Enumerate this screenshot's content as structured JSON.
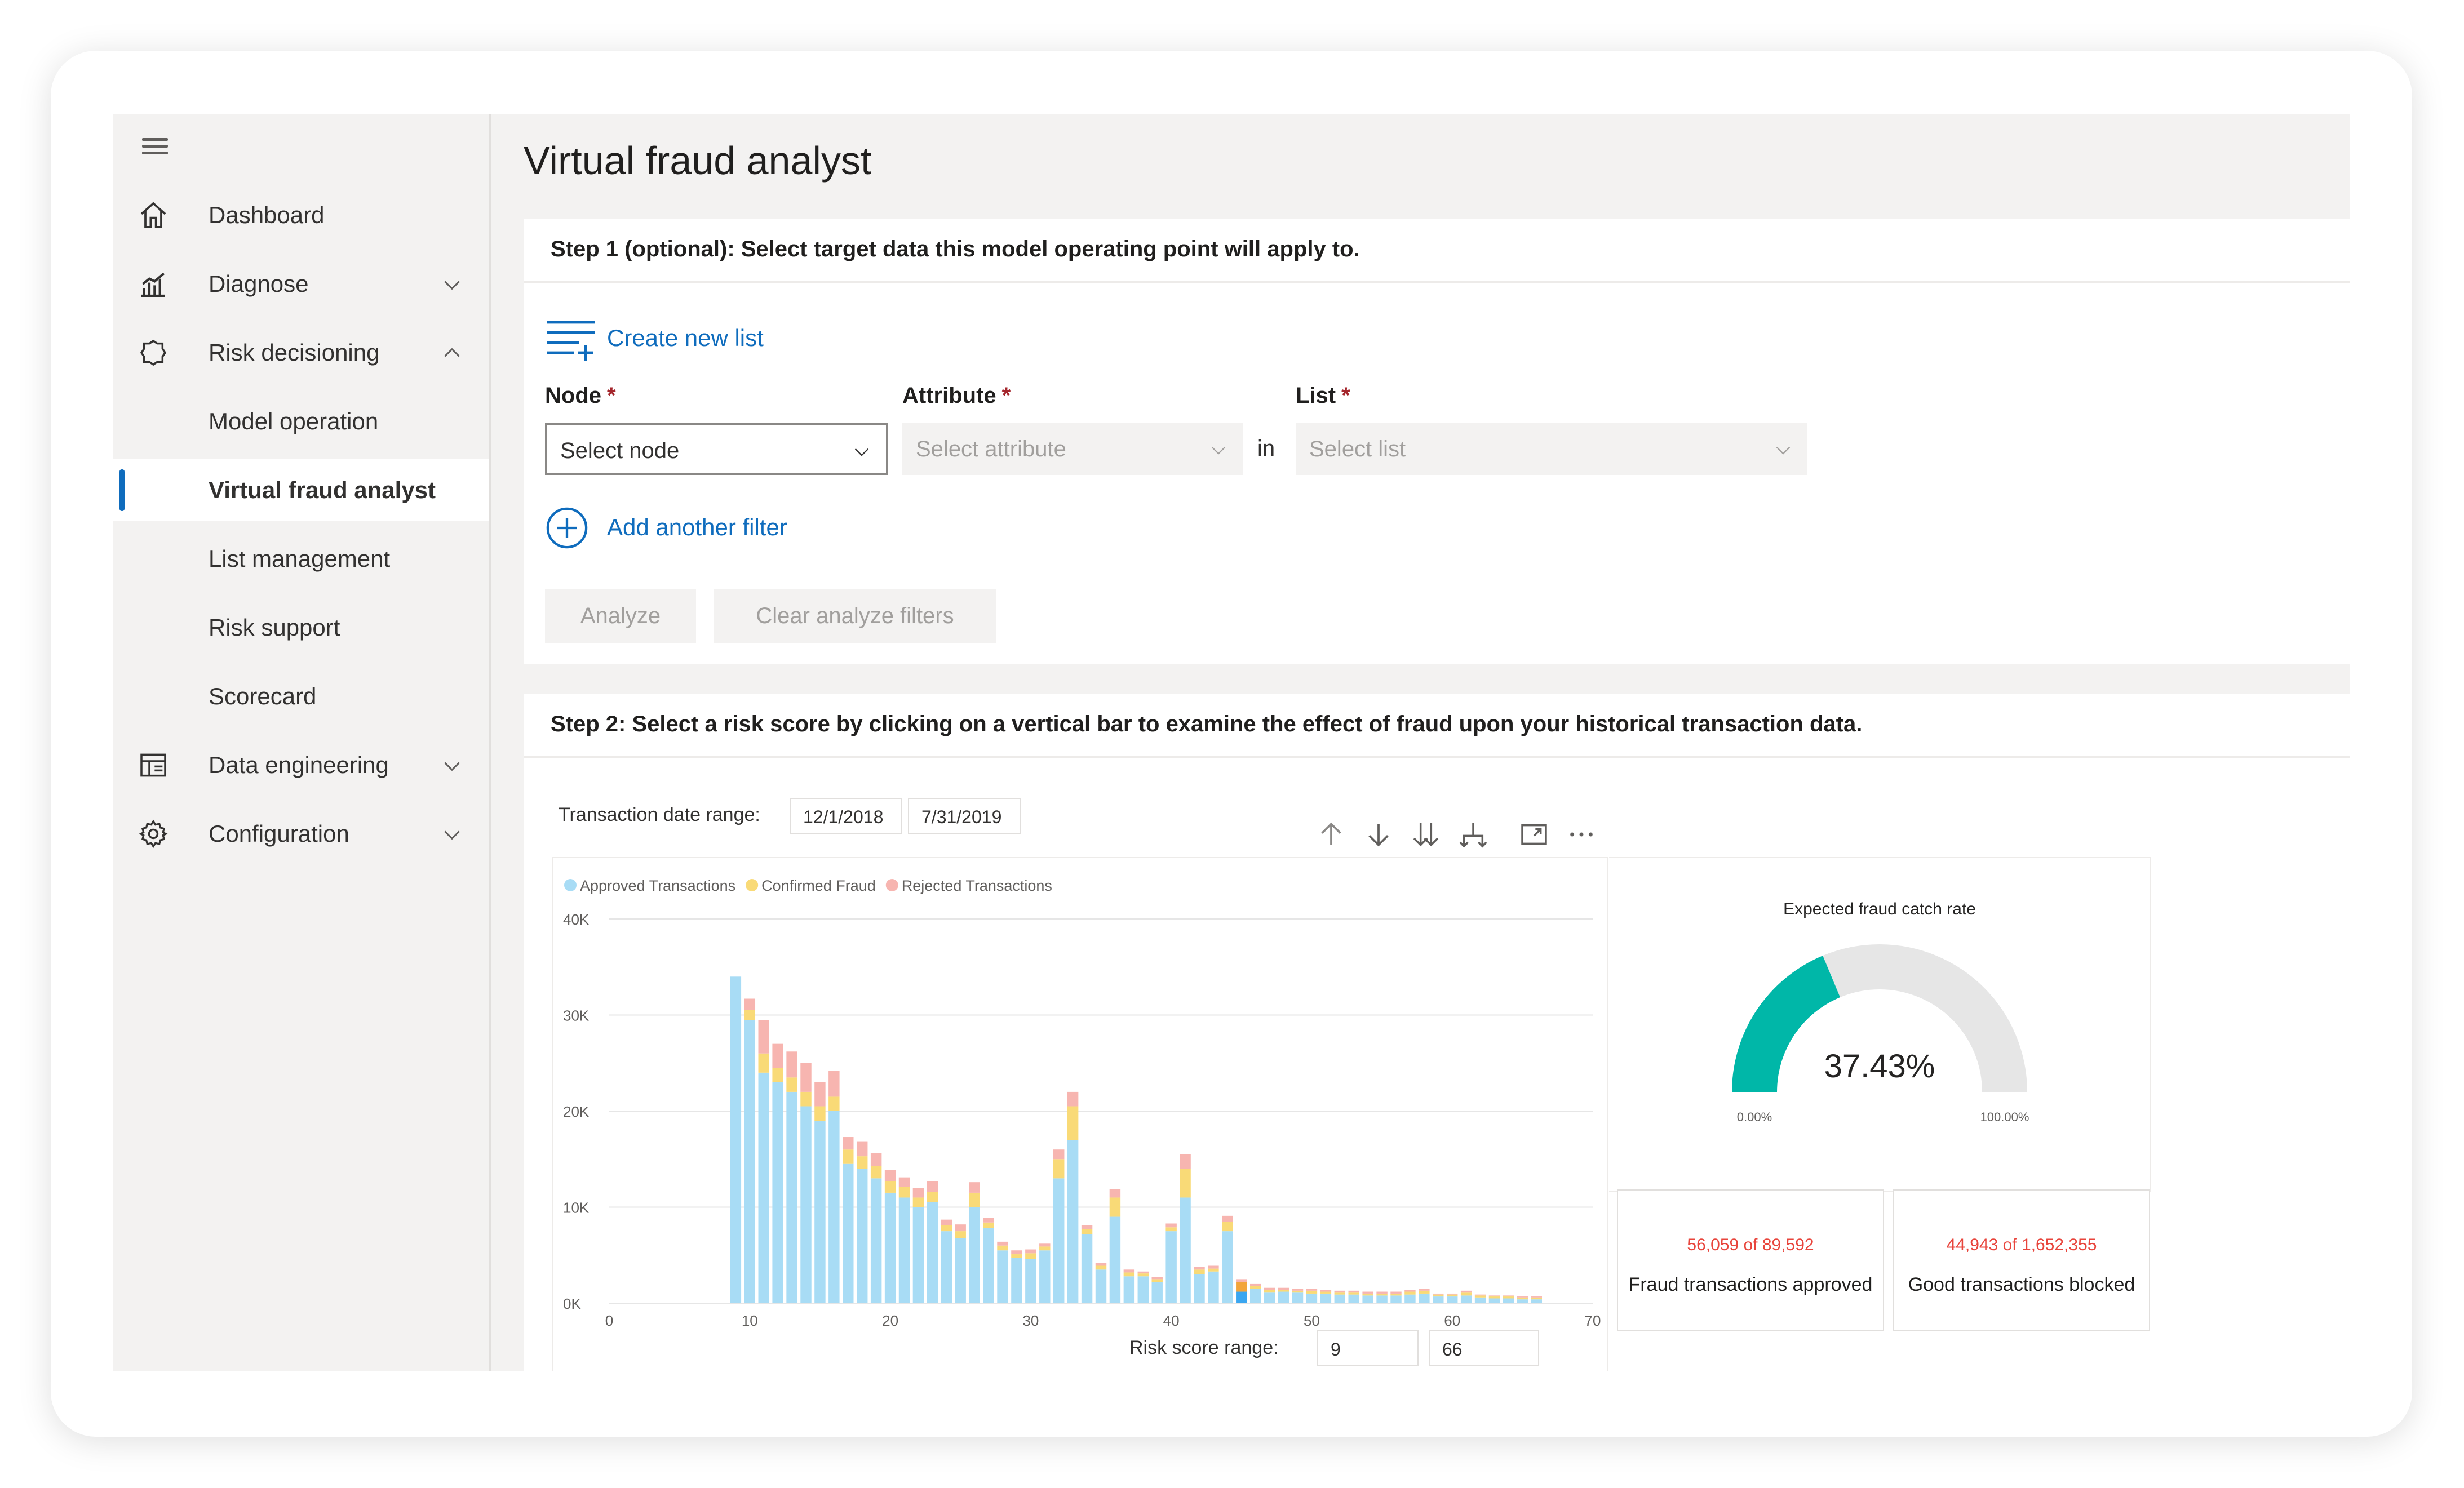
{
  "window": {
    "title": "Virtual fraud analyst"
  },
  "sidebar": {
    "items": [
      {
        "label": "Dashboard",
        "icon": "home-icon"
      },
      {
        "label": "Diagnose",
        "icon": "chart-icon",
        "expandable": true,
        "expanded": false
      },
      {
        "label": "Risk decisioning",
        "icon": "risk-icon",
        "expandable": true,
        "expanded": true
      },
      {
        "label": "Model operation",
        "sub": true
      },
      {
        "label": "Virtual fraud analyst",
        "sub": true,
        "active": true
      },
      {
        "label": "List management",
        "sub": true
      },
      {
        "label": "Risk support",
        "sub": true
      },
      {
        "label": "Scorecard",
        "sub": true
      },
      {
        "label": "Data engineering",
        "icon": "data-engineering-icon",
        "expandable": true,
        "expanded": false
      },
      {
        "label": "Configuration",
        "icon": "gear-icon",
        "expandable": true,
        "expanded": false
      }
    ]
  },
  "step1": {
    "heading": "Step 1 (optional): Select target data this model operating point will apply to.",
    "create_list": "Create new list",
    "node": {
      "label": "Node",
      "required": "*",
      "placeholder": "Select node"
    },
    "attribute": {
      "label": "Attribute",
      "required": "*",
      "placeholder": "Select attribute"
    },
    "in_label": "in",
    "list": {
      "label": "List",
      "required": "*",
      "placeholder": "Select list"
    },
    "add_filter": "Add another filter",
    "analyze": "Analyze",
    "clear": "Clear analyze filters"
  },
  "step2": {
    "heading": "Step 2: Select a risk score by clicking on a vertical bar to examine the effect of fraud upon your historical transaction data.",
    "date_range_label": "Transaction date range:",
    "date_start": "12/1/2018",
    "date_end": "7/31/2019",
    "risk_range_label": "Risk score range:",
    "risk_min": "9",
    "risk_max": "66",
    "toolbar_icons": [
      "arrow-up-icon",
      "arrow-down-icon",
      "double-arrow-down-icon",
      "hierarchy-icon",
      "focus-mode-icon",
      "more-options-icon"
    ]
  },
  "chart_data": [
    {
      "type": "bar",
      "stacked": true,
      "legend_position": "top-left",
      "legend": [
        "Approved Transactions",
        "Confirmed Fraud",
        "Rejected Transactions"
      ],
      "colors": {
        "approved": "#a8dcf5",
        "fraud": "#f9da77",
        "rejected": "#f7b5b0",
        "selected": "#3aa6f0",
        "selected_fraud": "#f2a43a"
      },
      "ylim": [
        0,
        40000
      ],
      "yticks": [
        "0K",
        "10K",
        "20K",
        "30K",
        "40K"
      ],
      "ytick_values": [
        0,
        10000,
        20000,
        30000,
        40000
      ],
      "xlim": [
        0,
        70
      ],
      "xticks": [
        "0",
        "10",
        "20",
        "30",
        "40",
        "50",
        "60",
        "70"
      ],
      "xtick_values": [
        0,
        10,
        20,
        30,
        40,
        50,
        60,
        70
      ],
      "grid": true,
      "selected_x": 45,
      "bars": [
        {
          "x": 9,
          "approved": 34000,
          "fraud": 0,
          "rejected": 0
        },
        {
          "x": 10,
          "approved": 29500,
          "fraud": 1000,
          "rejected": 1200
        },
        {
          "x": 11,
          "approved": 24000,
          "fraud": 2000,
          "rejected": 3500
        },
        {
          "x": 12,
          "approved": 23000,
          "fraud": 1500,
          "rejected": 2500
        },
        {
          "x": 13,
          "approved": 22000,
          "fraud": 1500,
          "rejected": 2700
        },
        {
          "x": 14,
          "approved": 20500,
          "fraud": 1500,
          "rejected": 3000
        },
        {
          "x": 15,
          "approved": 19000,
          "fraud": 1500,
          "rejected": 2500
        },
        {
          "x": 16,
          "approved": 20000,
          "fraud": 1500,
          "rejected": 2700
        },
        {
          "x": 17,
          "approved": 14500,
          "fraud": 1500,
          "rejected": 1300
        },
        {
          "x": 18,
          "approved": 14000,
          "fraud": 1300,
          "rejected": 1500
        },
        {
          "x": 19,
          "approved": 13000,
          "fraud": 1300,
          "rejected": 1300
        },
        {
          "x": 20,
          "approved": 11500,
          "fraud": 1200,
          "rejected": 1200
        },
        {
          "x": 21,
          "approved": 11000,
          "fraud": 1100,
          "rejected": 1000
        },
        {
          "x": 22,
          "approved": 10000,
          "fraud": 1000,
          "rejected": 1000
        },
        {
          "x": 23,
          "approved": 10500,
          "fraud": 1100,
          "rejected": 1100
        },
        {
          "x": 24,
          "approved": 7500,
          "fraud": 600,
          "rejected": 600
        },
        {
          "x": 25,
          "approved": 6800,
          "fraud": 700,
          "rejected": 700
        },
        {
          "x": 26,
          "approved": 10000,
          "fraud": 1500,
          "rejected": 1100
        },
        {
          "x": 27,
          "approved": 7800,
          "fraud": 600,
          "rejected": 500
        },
        {
          "x": 28,
          "approved": 5500,
          "fraud": 500,
          "rejected": 400
        },
        {
          "x": 29,
          "approved": 4700,
          "fraud": 400,
          "rejected": 400
        },
        {
          "x": 30,
          "approved": 4600,
          "fraud": 600,
          "rejected": 400
        },
        {
          "x": 31,
          "approved": 5500,
          "fraud": 400,
          "rejected": 300
        },
        {
          "x": 32,
          "approved": 13000,
          "fraud": 2000,
          "rejected": 1000
        },
        {
          "x": 33,
          "approved": 17000,
          "fraud": 3500,
          "rejected": 1500
        },
        {
          "x": 34,
          "approved": 7200,
          "fraud": 500,
          "rejected": 400
        },
        {
          "x": 35,
          "approved": 3500,
          "fraud": 400,
          "rejected": 300
        },
        {
          "x": 36,
          "approved": 9000,
          "fraud": 2000,
          "rejected": 900
        },
        {
          "x": 37,
          "approved": 2800,
          "fraud": 400,
          "rejected": 300
        },
        {
          "x": 38,
          "approved": 2800,
          "fraud": 300,
          "rejected": 200
        },
        {
          "x": 39,
          "approved": 2200,
          "fraud": 300,
          "rejected": 200
        },
        {
          "x": 40,
          "approved": 7500,
          "fraud": 400,
          "rejected": 400
        },
        {
          "x": 41,
          "approved": 11000,
          "fraud": 3000,
          "rejected": 1500
        },
        {
          "x": 42,
          "approved": 3000,
          "fraud": 500,
          "rejected": 300
        },
        {
          "x": 43,
          "approved": 3300,
          "fraud": 300,
          "rejected": 300
        },
        {
          "x": 44,
          "approved": 7500,
          "fraud": 1000,
          "rejected": 600
        },
        {
          "x": 45,
          "approved": 1200,
          "fraud": 1000,
          "rejected": 300
        },
        {
          "x": 46,
          "approved": 1500,
          "fraud": 300,
          "rejected": 200
        },
        {
          "x": 47,
          "approved": 1100,
          "fraud": 300,
          "rejected": 200
        },
        {
          "x": 48,
          "approved": 1200,
          "fraud": 200,
          "rejected": 200
        },
        {
          "x": 49,
          "approved": 1100,
          "fraud": 200,
          "rejected": 200
        },
        {
          "x": 50,
          "approved": 1000,
          "fraud": 300,
          "rejected": 200
        },
        {
          "x": 51,
          "approved": 1000,
          "fraud": 200,
          "rejected": 200
        },
        {
          "x": 52,
          "approved": 900,
          "fraud": 200,
          "rejected": 200
        },
        {
          "x": 53,
          "approved": 900,
          "fraud": 200,
          "rejected": 200
        },
        {
          "x": 54,
          "approved": 800,
          "fraud": 200,
          "rejected": 200
        },
        {
          "x": 55,
          "approved": 800,
          "fraud": 200,
          "rejected": 200
        },
        {
          "x": 56,
          "approved": 800,
          "fraud": 200,
          "rejected": 200
        },
        {
          "x": 57,
          "approved": 900,
          "fraud": 300,
          "rejected": 200
        },
        {
          "x": 58,
          "approved": 1000,
          "fraud": 300,
          "rejected": 200
        },
        {
          "x": 59,
          "approved": 700,
          "fraud": 200,
          "rejected": 100
        },
        {
          "x": 60,
          "approved": 700,
          "fraud": 200,
          "rejected": 100
        },
        {
          "x": 61,
          "approved": 800,
          "fraud": 300,
          "rejected": 200
        },
        {
          "x": 62,
          "approved": 600,
          "fraud": 200,
          "rejected": 100
        },
        {
          "x": 63,
          "approved": 500,
          "fraud": 200,
          "rejected": 100
        },
        {
          "x": 64,
          "approved": 500,
          "fraud": 200,
          "rejected": 100
        },
        {
          "x": 65,
          "approved": 400,
          "fraud": 200,
          "rejected": 100
        },
        {
          "x": 66,
          "approved": 400,
          "fraud": 200,
          "rejected": 100
        }
      ]
    },
    {
      "type": "gauge",
      "title": "Expected fraud catch rate",
      "value_label": "37.43%",
      "value": 37.43,
      "min_label": "0.00%",
      "max_label": "100.00%",
      "colors": {
        "fill": "#00b7a8",
        "track": "#e6e6e6"
      }
    }
  ],
  "kpis": [
    {
      "value": "56,059 of 89,592",
      "label": "Fraud transactions approved"
    },
    {
      "value": "44,943 of 1,652,355",
      "label": "Good transactions blocked"
    }
  ]
}
